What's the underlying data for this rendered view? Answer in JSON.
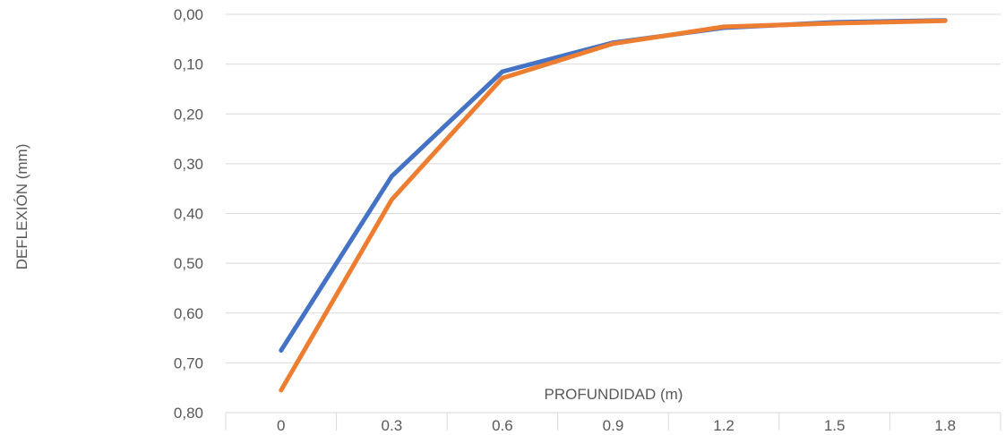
{
  "chart_data": {
    "type": "line",
    "xlabel": "PROFUNDIDAD (m)",
    "ylabel": "DEFLEXIÓN (mm)",
    "categories": [
      "0",
      "0,3",
      "0,6",
      "0,9",
      "1,2",
      "1,5",
      "1,8"
    ],
    "y_axis": {
      "min": 0,
      "max": 0.8,
      "reversed": true,
      "ticks": [
        0,
        0.1,
        0.2,
        0.3,
        0.4,
        0.5,
        0.6,
        0.7,
        0.8
      ],
      "tick_labels": [
        "0,00",
        "0,10",
        "0,20",
        "0,30",
        "0,40",
        "0,50",
        "0,60",
        "0,70",
        "0,80"
      ]
    },
    "grid": true,
    "series": [
      {
        "color": "#4472C4",
        "values": [
          0.675,
          0.325,
          0.115,
          0.057,
          0.027,
          0.016,
          0.012
        ]
      },
      {
        "color": "#ED7D31",
        "values": [
          0.755,
          0.372,
          0.128,
          0.059,
          0.025,
          0.018,
          0.013
        ]
      }
    ]
  }
}
